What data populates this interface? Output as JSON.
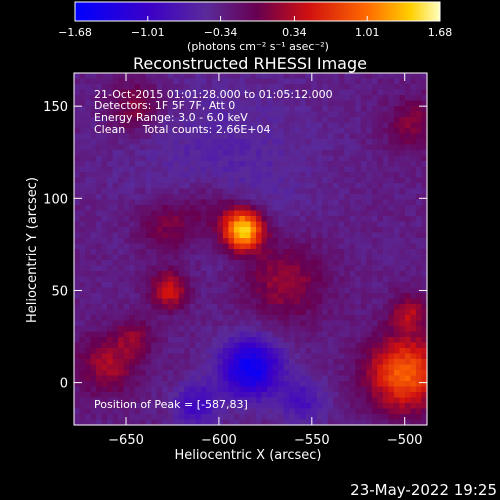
{
  "chart_data": {
    "type": "heatmap",
    "title": "Reconstructed RHESSI Image",
    "xlabel": "Heliocentric X (arcsec)",
    "ylabel": "Heliocentric Y (arcsec)",
    "xlim": [
      -678,
      -488
    ],
    "ylim": [
      -23,
      168
    ],
    "x_ticks": [
      {
        "v": -650,
        "label": "−650"
      },
      {
        "v": -600,
        "label": "−600"
      },
      {
        "v": -550,
        "label": "−550"
      },
      {
        "v": -500,
        "label": "−500"
      }
    ],
    "y_ticks": [
      {
        "v": 0,
        "label": "0"
      },
      {
        "v": 50,
        "label": "50"
      },
      {
        "v": 100,
        "label": "100"
      },
      {
        "v": 150,
        "label": "150"
      }
    ],
    "colorbar": {
      "range": [
        -1.68,
        1.68
      ],
      "ticks": [
        {
          "v": -1.68,
          "label": "−1.68"
        },
        {
          "v": -1.01,
          "label": "−1.01"
        },
        {
          "v": -0.34,
          "label": "−0.34"
        },
        {
          "v": 0.34,
          "label": "0.34"
        },
        {
          "v": 1.01,
          "label": "1.01"
        },
        {
          "v": 1.68,
          "label": "1.68"
        }
      ],
      "unit": "(photons cm⁻² s⁻¹ asec⁻²)"
    },
    "info_lines": [
      "21-Oct-2015 01:01:28.000 to 01:05:12.000",
      "Detectors: 1F 5F 7F, Att 0",
      "Energy Range: 3.0 - 6.0 keV",
      "Clean     Total counts: 2.66E+04"
    ],
    "peak_label": "Position of Peak = [-587,83]",
    "peak": {
      "x": -587,
      "y": 83,
      "value": 1.68
    },
    "sources": [
      {
        "x": -587,
        "y": 83,
        "r": 11,
        "amp": 1.85
      },
      {
        "x": -605,
        "y": 95,
        "r": 15,
        "amp": 0.35
      },
      {
        "x": -627,
        "y": 50,
        "r": 10,
        "amp": 0.85
      },
      {
        "x": -628,
        "y": 85,
        "r": 16,
        "amp": 0.5
      },
      {
        "x": -565,
        "y": 55,
        "r": 22,
        "amp": 0.55
      },
      {
        "x": -500,
        "y": 5,
        "r": 20,
        "amp": 1.25
      },
      {
        "x": -498,
        "y": 38,
        "r": 10,
        "amp": 0.6
      },
      {
        "x": -660,
        "y": 10,
        "r": 16,
        "amp": 0.6
      },
      {
        "x": -645,
        "y": 25,
        "r": 10,
        "amp": 0.45
      },
      {
        "x": -645,
        "y": 150,
        "r": 14,
        "amp": 0.5
      },
      {
        "x": -495,
        "y": 140,
        "r": 15,
        "amp": 0.45
      },
      {
        "x": -583,
        "y": 8,
        "r": 16,
        "amp": -1.25
      },
      {
        "x": -612,
        "y": -12,
        "r": 12,
        "amp": -0.6
      },
      {
        "x": -555,
        "y": -10,
        "r": 12,
        "amp": -0.5
      },
      {
        "x": -598,
        "y": 118,
        "r": 48,
        "amp": -0.25
      }
    ],
    "background": -0.32
  },
  "timestamp": "23-May-2022 19:25"
}
